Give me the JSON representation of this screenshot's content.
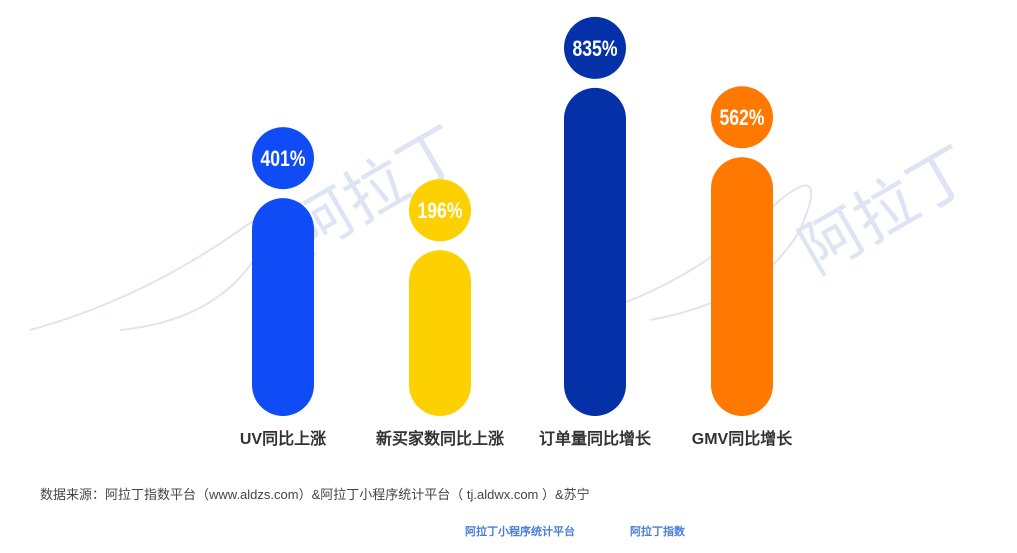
{
  "chart_data": {
    "type": "bar",
    "title": "",
    "categories": [
      "UV同比上涨",
      "新买家数同比上涨",
      "订单量同比增长",
      "GMV同比增长"
    ],
    "values": [
      401,
      196,
      835,
      562
    ],
    "value_labels": [
      "401%",
      "196%",
      "835%",
      "562%"
    ],
    "colors": [
      "#0f4cf5",
      "#fdd000",
      "#0430a8",
      "#ff7800"
    ],
    "unit": "%",
    "grid": false
  },
  "watermark": "阿拉丁",
  "source": "数据来源：阿拉丁指数平台（www.aldzs.com）&阿拉丁小程序统计平台（ tj.aldwx.com ）&苏宁",
  "logos": [
    "阿拉丁小程序统计平台",
    "阿拉丁指数"
  ]
}
